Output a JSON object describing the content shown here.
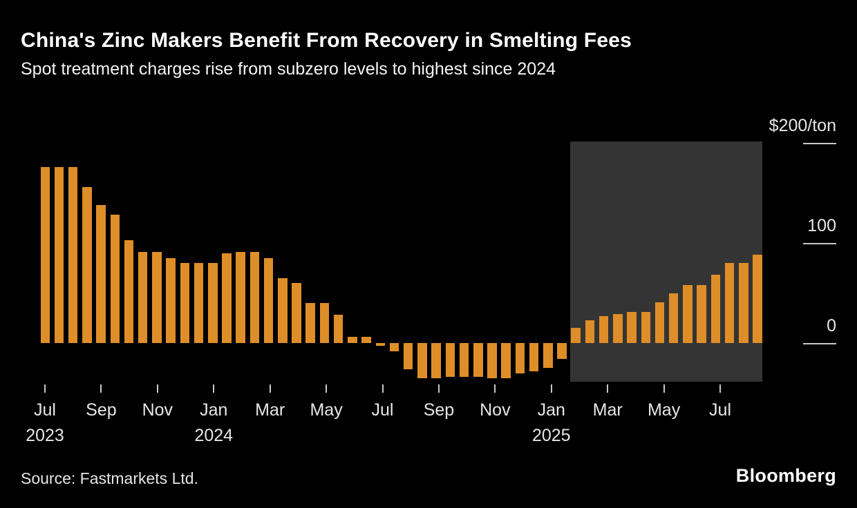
{
  "header": {
    "title": "China's Zinc Makers Benefit From Recovery in Smelting Fees",
    "subtitle": "Spot treatment charges rise from subzero levels to highest since 2024"
  },
  "chart_data": {
    "type": "bar",
    "title": "China's Zinc Makers Benefit From Recovery in Smelting Fees",
    "subtitle": "Spot treatment charges rise from subzero levels to highest since 2024",
    "ylabel": "$/ton",
    "unit_label": "$200/ton",
    "ylim": [
      -40,
      200
    ],
    "yticks": [
      0,
      100,
      200
    ],
    "ytick_labels": [
      "0",
      "100",
      "$200/ton"
    ],
    "grid": false,
    "legend_position": "none",
    "frequency": "semi-monthly",
    "x": [
      "2023-07-01",
      "2023-07-16",
      "2023-08-01",
      "2023-08-16",
      "2023-09-01",
      "2023-09-16",
      "2023-10-01",
      "2023-10-16",
      "2023-11-01",
      "2023-11-16",
      "2023-12-01",
      "2023-12-16",
      "2024-01-01",
      "2024-01-16",
      "2024-02-01",
      "2024-02-16",
      "2024-03-01",
      "2024-03-16",
      "2024-04-01",
      "2024-04-16",
      "2024-05-01",
      "2024-05-16",
      "2024-06-01",
      "2024-06-16",
      "2024-07-01",
      "2024-07-16",
      "2024-08-01",
      "2024-08-16",
      "2024-09-01",
      "2024-09-16",
      "2024-10-01",
      "2024-10-16",
      "2024-11-01",
      "2024-11-16",
      "2024-12-01",
      "2024-12-16",
      "2025-01-01",
      "2025-01-16",
      "2025-02-01",
      "2025-02-16",
      "2025-03-01",
      "2025-03-16",
      "2025-04-01",
      "2025-04-16",
      "2025-05-01",
      "2025-05-16",
      "2025-06-01",
      "2025-06-16",
      "2025-07-01",
      "2025-07-16",
      "2025-08-01",
      "2025-08-16"
    ],
    "values": [
      176,
      176,
      176,
      156,
      138,
      128,
      103,
      91,
      91,
      85,
      80,
      80,
      80,
      90,
      91,
      91,
      85,
      65,
      60,
      40,
      40,
      28,
      6,
      6,
      -3,
      -8,
      -26,
      -35,
      -35,
      -34,
      -34,
      -34,
      -35,
      -35,
      -30,
      -28,
      -25,
      -16,
      15,
      23,
      27,
      29,
      31,
      31,
      41,
      50,
      58,
      58,
      68,
      80,
      80,
      88
    ],
    "xtick_labels": [
      "Jul",
      "Sep",
      "Nov",
      "Jan",
      "Mar",
      "May",
      "Jul",
      "Sep",
      "Nov",
      "Jan",
      "Mar",
      "May",
      "Jul"
    ],
    "xtick_years": [
      "2023",
      "",
      "",
      "2024",
      "",
      "",
      "",
      "",
      "",
      "2025",
      "",
      "",
      ""
    ],
    "highlight": {
      "description": "shaded region from Feb 2025 to end of series",
      "start_index": 38
    },
    "colors": {
      "bar": "#de8e28",
      "highlight_bg": "#343434",
      "background": "#000000",
      "title_text": "#ffffff",
      "axis_text": "#e6e6e6",
      "tick_mark": "#c9c9c9"
    }
  },
  "footer": {
    "source": "Source: Fastmarkets Ltd.",
    "brand": "Bloomberg"
  }
}
